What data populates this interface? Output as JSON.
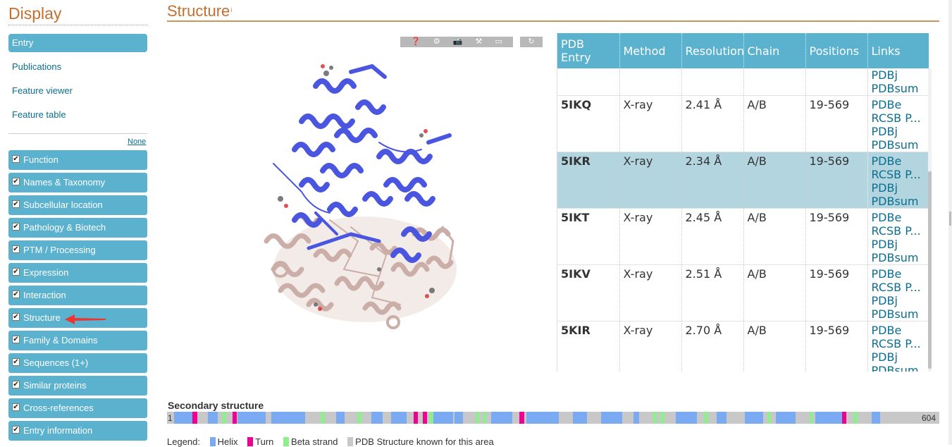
{
  "sidebar": {
    "title": "Display",
    "nav": [
      {
        "label": "Entry",
        "active": true
      },
      {
        "label": "Publications"
      },
      {
        "label": "Feature viewer"
      },
      {
        "label": "Feature table"
      }
    ],
    "none_label": "None",
    "sections": [
      {
        "label": "Function"
      },
      {
        "label": "Names & Taxonomy"
      },
      {
        "label": "Subcellular location"
      },
      {
        "label": "Pathology & Biotech"
      },
      {
        "label": "PTM / Processing"
      },
      {
        "label": "Expression"
      },
      {
        "label": "Interaction"
      },
      {
        "label": "Structure"
      },
      {
        "label": "Family & Domains"
      },
      {
        "label": "Sequences (1+)"
      },
      {
        "label": "Similar proteins"
      },
      {
        "label": "Cross-references"
      },
      {
        "label": "Entry information"
      }
    ],
    "checkmark": "✔"
  },
  "main": {
    "title": "Structure",
    "info_glyph": "i"
  },
  "viewer": {
    "toolbar_icons": [
      "help-icon",
      "settings-icon",
      "camera-icon",
      "tools-icon",
      "fullscreen-icon"
    ],
    "toolbar_glyphs": [
      "❓",
      "⚙",
      "📷",
      "⚒",
      "▭"
    ],
    "reset_glyph": "↻"
  },
  "table": {
    "headers": [
      "PDB Entry",
      "Method",
      "Resolution",
      "Chain",
      "Positions",
      "Links"
    ],
    "partial_row_links": [
      "PDBj",
      "PDBsum"
    ],
    "rows": [
      {
        "entry": "5IKQ",
        "method": "X-ray",
        "resolution": "2.41 Å",
        "chain": "A/B",
        "positions": "19-569",
        "links": [
          "PDBe",
          "RCSB P...",
          "PDBj",
          "PDBsum"
        ]
      },
      {
        "entry": "5IKR",
        "method": "X-ray",
        "resolution": "2.34 Å",
        "chain": "A/B",
        "positions": "19-569",
        "links": [
          "PDBe",
          "RCSB P...",
          "PDBj",
          "PDBsum"
        ],
        "selected": true
      },
      {
        "entry": "5IKT",
        "method": "X-ray",
        "resolution": "2.45 Å",
        "chain": "A/B",
        "positions": "19-569",
        "links": [
          "PDBe",
          "RCSB P...",
          "PDBj",
          "PDBsum"
        ]
      },
      {
        "entry": "5IKV",
        "method": "X-ray",
        "resolution": "2.51 Å",
        "chain": "A/B",
        "positions": "19-569",
        "links": [
          "PDBe",
          "RCSB P...",
          "PDBj",
          "PDBsum"
        ]
      },
      {
        "entry": "5KIR",
        "method": "X-ray",
        "resolution": "2.70 Å",
        "chain": "A/B",
        "positions": "19-569",
        "links": [
          "PDBe",
          "RCSB P...",
          "PDBj",
          "PDBsum"
        ]
      }
    ]
  },
  "secondary_structure": {
    "title": "Secondary structure",
    "start": "1",
    "end": "604",
    "legend_label": "Legend:",
    "legend": [
      {
        "label": "Helix",
        "color": "#7aaaf2"
      },
      {
        "label": "Turn",
        "color": "#ee0090"
      },
      {
        "label": "Beta strand",
        "color": "#90ee90"
      },
      {
        "label": "PDB Structure known for this area",
        "color": "#c8c8c8"
      }
    ]
  },
  "colors": {
    "accent_orange": "#c46f2e",
    "sidebar_blue": "#5bb2cf",
    "selected_row": "#b2d5e0",
    "link": "#0c6e8f",
    "chain_a": "#4a55e0",
    "chain_b": "#c9aaa4"
  }
}
